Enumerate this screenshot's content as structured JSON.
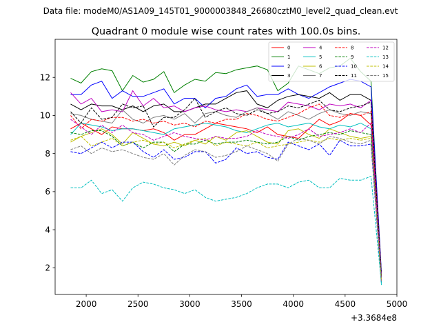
{
  "chart_data": {
    "type": "line",
    "suptitle": "Data file: modeM0/AS1A09_145T01_9000003848_26680cztM0_level2_quad_clean.evt",
    "title": "Quadrant 0 module wise count rates with 100.0s bins.",
    "xlabel": "",
    "ylabel": "",
    "x_offset_label": "+3.3684e8",
    "xlim": [
      1700,
      5000
    ],
    "ylim": [
      0.6,
      14.0
    ],
    "xticks": [
      2000,
      2500,
      3000,
      3500,
      4000,
      4500,
      5000
    ],
    "xtick_labels": [
      "2000",
      "2500",
      "3000",
      "3500",
      "4000",
      "4500",
      "5000"
    ],
    "yticks": [
      2,
      4,
      6,
      8,
      10,
      12
    ],
    "ytick_labels": [
      "2",
      "4",
      "6",
      "8",
      "10",
      "12"
    ],
    "legend_position": "top-right",
    "legend_columns": 4,
    "x": [
      1850,
      1950,
      2050,
      2150,
      2250,
      2350,
      2450,
      2550,
      2650,
      2750,
      2850,
      2950,
      3050,
      3150,
      3250,
      3350,
      3450,
      3550,
      3650,
      3750,
      3850,
      3950,
      4050,
      4150,
      4250,
      4350,
      4450,
      4550,
      4650,
      4750,
      4850
    ],
    "series": [
      {
        "name": "0",
        "color": "#ff0000",
        "dash": "solid",
        "values": [
          9.3,
          9.6,
          9.3,
          9.0,
          9.4,
          9.3,
          9.3,
          9.2,
          9.3,
          9.1,
          8.7,
          9.0,
          9.0,
          9.3,
          9.6,
          9.5,
          9.4,
          9.3,
          9.1,
          9.4,
          9.0,
          8.9,
          8.8,
          9.3,
          9.8,
          9.5,
          9.7,
          10.1,
          10.0,
          9.5,
          1.5
        ]
      },
      {
        "name": "1",
        "color": "#008000",
        "dash": "solid",
        "values": [
          11.95,
          11.7,
          12.3,
          12.45,
          12.35,
          11.3,
          12.1,
          11.75,
          11.9,
          12.3,
          11.2,
          11.6,
          11.9,
          11.8,
          12.25,
          12.2,
          12.4,
          12.5,
          12.6,
          12.4,
          11.3,
          11.7,
          12.6,
          12.4,
          12.2,
          12.5,
          12.6,
          13.0,
          12.3,
          11.8,
          1.6
        ]
      },
      {
        "name": "2",
        "color": "#0000ff",
        "dash": "solid",
        "values": [
          11.1,
          11.1,
          11.6,
          11.8,
          10.9,
          11.3,
          11.0,
          11.0,
          11.2,
          11.4,
          10.6,
          10.9,
          10.9,
          10.4,
          10.9,
          11.0,
          11.4,
          11.6,
          11.0,
          11.1,
          11.1,
          11.4,
          11.1,
          10.9,
          11.2,
          11.5,
          11.7,
          11.9,
          11.8,
          11.5,
          1.8
        ]
      },
      {
        "name": "3",
        "color": "#000000",
        "dash": "solid",
        "values": [
          10.6,
          10.3,
          10.6,
          10.5,
          10.5,
          10.3,
          10.5,
          10.2,
          10.5,
          10.6,
          10.2,
          10.2,
          10.4,
          10.6,
          10.6,
          10.9,
          11.2,
          11.3,
          10.6,
          10.4,
          10.8,
          11.0,
          11.1,
          11.0,
          10.9,
          11.2,
          10.8,
          11.1,
          11.1,
          10.8,
          1.7
        ]
      },
      {
        "name": "4",
        "color": "#bf00bf",
        "dash": "solid",
        "values": [
          11.2,
          10.6,
          10.9,
          10.2,
          10.3,
          10.2,
          11.3,
          10.5,
          10.9,
          10.4,
          10.5,
          10.2,
          10.4,
          10.5,
          10.3,
          10.2,
          10.3,
          10.2,
          10.4,
          10.3,
          10.2,
          10.7,
          10.6,
          10.5,
          10.3,
          10.6,
          10.5,
          10.6,
          10.4,
          10.8,
          1.6
        ]
      },
      {
        "name": "5",
        "color": "#00bfbf",
        "dash": "solid",
        "values": [
          9.0,
          9.6,
          9.5,
          9.4,
          9.2,
          9.3,
          9.3,
          9.2,
          9.1,
          9.0,
          9.3,
          9.4,
          9.5,
          9.6,
          9.5,
          9.4,
          9.2,
          9.1,
          9.3,
          9.5,
          9.6,
          9.4,
          9.5,
          9.6,
          9.4,
          9.3,
          9.5,
          9.4,
          9.6,
          9.3,
          1.1
        ]
      },
      {
        "name": "6",
        "color": "#bfbf00",
        "dash": "solid",
        "values": [
          8.6,
          8.9,
          9.1,
          9.3,
          9.0,
          8.5,
          9.1,
          8.8,
          8.5,
          8.4,
          8.6,
          8.4,
          8.7,
          8.5,
          8.9,
          8.7,
          9.1,
          9.2,
          8.9,
          8.6,
          8.5,
          9.2,
          9.3,
          9.0,
          8.8,
          9.3,
          9.1,
          8.9,
          8.8,
          8.9,
          1.3
        ]
      },
      {
        "name": "7",
        "color": "#7f7f7f",
        "dash": "solid",
        "values": [
          10.1,
          10.0,
          9.8,
          9.7,
          9.6,
          10.3,
          9.8,
          9.6,
          9.9,
          10.0,
          9.8,
          10.1,
          9.6,
          10.1,
          10.2,
          10.0,
          9.9,
          10.2,
          10.4,
          10.1,
          9.8,
          10.2,
          10.0,
          9.8,
          10.1,
          10.3,
          10.1,
          10.0,
          10.2,
          10.1,
          1.6
        ]
      },
      {
        "name": "8",
        "color": "#ff0000",
        "dash": "dashed",
        "values": [
          10.0,
          9.3,
          9.8,
          9.7,
          9.9,
          9.9,
          9.7,
          9.8,
          9.6,
          9.7,
          9.5,
          9.6,
          9.4,
          9.7,
          9.6,
          9.8,
          9.8,
          10.1,
          10.0,
          9.8,
          9.7,
          9.9,
          10.1,
          10.4,
          10.6,
          10.0,
          9.9,
          10.1,
          10.0,
          10.2,
          1.4
        ]
      },
      {
        "name": "9",
        "color": "#008000",
        "dash": "dashed",
        "values": [
          9.1,
          9.0,
          9.2,
          9.2,
          8.9,
          8.4,
          8.6,
          8.3,
          8.6,
          8.6,
          8.1,
          8.5,
          8.5,
          8.7,
          8.5,
          8.6,
          8.6,
          8.7,
          8.6,
          8.5,
          8.6,
          8.9,
          8.7,
          8.9,
          9.0,
          9.1,
          9.0,
          9.2,
          9.1,
          9.0,
          1.4
        ]
      },
      {
        "name": "10",
        "color": "#0000ff",
        "dash": "dashed",
        "values": [
          8.1,
          8.0,
          8.3,
          8.6,
          8.3,
          8.6,
          8.6,
          8.1,
          7.8,
          8.2,
          7.7,
          7.8,
          8.1,
          8.1,
          7.5,
          7.7,
          8.3,
          8.0,
          8.1,
          7.8,
          7.7,
          8.6,
          8.4,
          8.2,
          8.5,
          7.9,
          8.7,
          8.4,
          8.4,
          8.5,
          1.2
        ]
      },
      {
        "name": "11",
        "color": "#000000",
        "dash": "dashed",
        "values": [
          10.2,
          9.6,
          10.4,
          9.8,
          9.9,
          10.6,
          10.4,
          10.5,
          9.4,
          9.9,
          9.9,
          10.3,
          10.9,
          9.9,
          10.2,
          10.4,
          10.1,
          10.0,
          10.3,
          10.1,
          10.2,
          10.5,
          10.4,
          10.6,
          10.8,
          10.3,
          10.2,
          10.4,
          10.5,
          10.7,
          1.5
        ]
      },
      {
        "name": "12",
        "color": "#bf00bf",
        "dash": "dashed",
        "values": [
          9.8,
          9.4,
          9.0,
          9.5,
          9.1,
          9.5,
          9.1,
          9.0,
          8.7,
          8.9,
          9.1,
          8.9,
          8.8,
          8.7,
          8.9,
          8.8,
          8.8,
          8.9,
          9.2,
          9.0,
          8.9,
          8.8,
          9.0,
          9.3,
          8.9,
          9.0,
          9.1,
          9.3,
          9.1,
          9.6,
          1.4
        ]
      },
      {
        "name": "13",
        "color": "#00bfbf",
        "dash": "dashed",
        "values": [
          6.2,
          6.2,
          6.6,
          5.9,
          6.1,
          5.5,
          6.2,
          6.5,
          6.4,
          6.2,
          6.1,
          5.9,
          6.1,
          5.7,
          5.5,
          5.6,
          5.7,
          5.9,
          6.2,
          6.4,
          6.4,
          6.2,
          6.5,
          6.6,
          6.2,
          6.2,
          6.7,
          6.6,
          6.6,
          6.8,
          1.2
        ]
      },
      {
        "name": "14",
        "color": "#bfbf00",
        "dash": "dashed",
        "values": [
          8.7,
          8.9,
          8.4,
          8.6,
          8.8,
          8.4,
          8.6,
          8.7,
          8.5,
          8.6,
          8.3,
          8.5,
          8.7,
          8.8,
          8.4,
          8.6,
          8.5,
          8.4,
          8.6,
          8.3,
          8.4,
          8.5,
          8.6,
          8.7,
          8.6,
          8.8,
          8.7,
          8.8,
          8.7,
          8.8,
          1.3
        ]
      },
      {
        "name": "15",
        "color": "#7f7f7f",
        "dash": "dashed",
        "values": [
          8.2,
          8.4,
          8.0,
          8.3,
          8.1,
          8.2,
          8.0,
          7.8,
          7.7,
          8.0,
          7.4,
          7.9,
          8.2,
          8.1,
          7.8,
          7.9,
          8.1,
          8.4,
          8.2,
          8.0,
          7.6,
          8.5,
          8.8,
          8.7,
          8.5,
          8.9,
          8.8,
          8.6,
          8.5,
          8.7,
          1.3
        ]
      }
    ]
  }
}
